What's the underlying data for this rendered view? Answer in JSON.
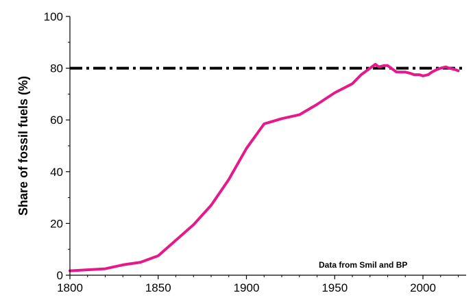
{
  "chart_data": {
    "type": "line",
    "title": "",
    "xlabel": "",
    "ylabel": "Share of fossil fuels (%)",
    "xlim": [
      1800,
      2025
    ],
    "ylim": [
      0,
      100
    ],
    "x_ticks": [
      1800,
      1850,
      1900,
      1950,
      2000
    ],
    "y_ticks": [
      0,
      20,
      40,
      60,
      80,
      100
    ],
    "grid": false,
    "annotation": "Data from Smil and BP",
    "reference_line": {
      "y": 80,
      "style": "dash-dot",
      "color": "#000000"
    },
    "series": [
      {
        "color": "#e6198a",
        "x": [
          1800,
          1810,
          1820,
          1830,
          1840,
          1850,
          1860,
          1870,
          1880,
          1890,
          1900,
          1910,
          1920,
          1930,
          1940,
          1950,
          1960,
          1965,
          1970,
          1973,
          1975,
          1978,
          1980,
          1983,
          1985,
          1990,
          1993,
          1995,
          1998,
          2000,
          2003,
          2005,
          2008,
          2010,
          2013,
          2015,
          2018,
          2020
        ],
        "y": [
          1.7,
          2.1,
          2.5,
          4.0,
          5.0,
          7.5,
          13.5,
          19.5,
          27.0,
          37.0,
          49.0,
          58.5,
          60.5,
          62.0,
          66.0,
          70.5,
          74.0,
          77.5,
          80.0,
          81.5,
          80.5,
          81.0,
          81.0,
          79.5,
          78.5,
          78.5,
          78.0,
          77.5,
          77.5,
          77.0,
          77.5,
          78.5,
          79.5,
          80.0,
          80.5,
          80.0,
          79.5,
          79.0
        ]
      }
    ]
  }
}
